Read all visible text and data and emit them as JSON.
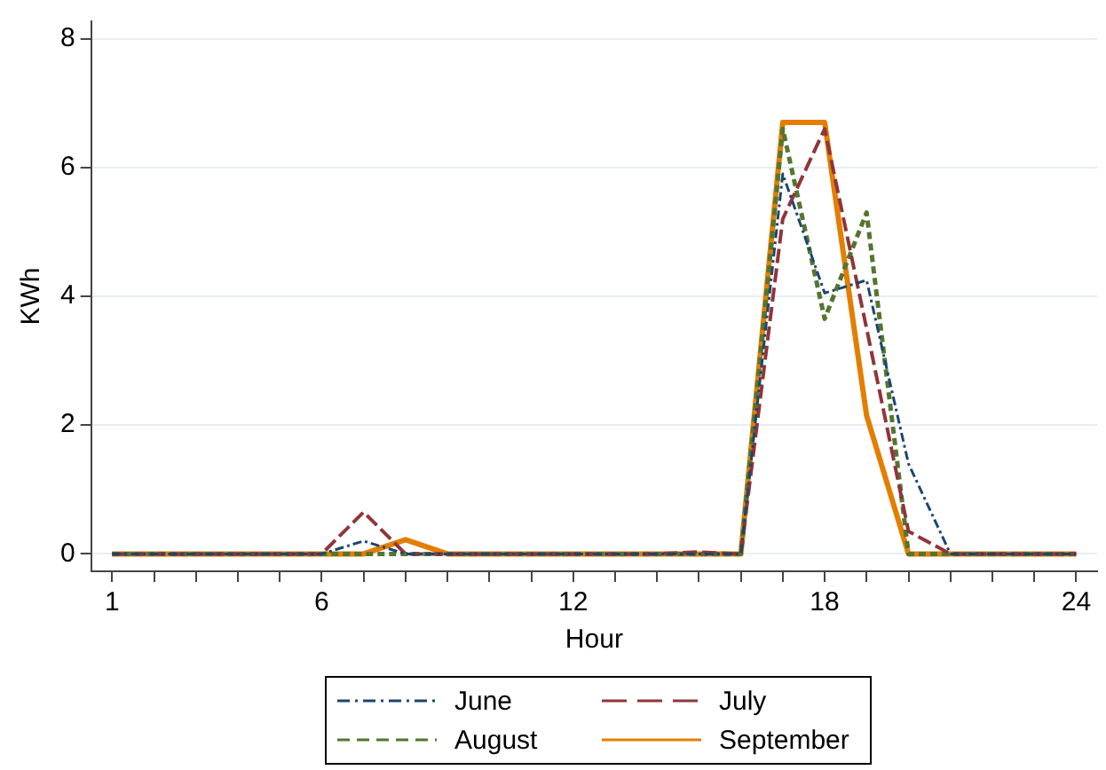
{
  "chart_data": {
    "type": "line",
    "xlabel": "Hour",
    "ylabel": "KWh",
    "x": [
      1,
      2,
      3,
      4,
      5,
      6,
      7,
      8,
      9,
      10,
      11,
      12,
      13,
      14,
      15,
      16,
      17,
      18,
      19,
      20,
      21,
      22,
      23,
      24
    ],
    "series": [
      {
        "name": "June",
        "color": "#1a476f",
        "line_style": "dashdot",
        "values": [
          0,
          0,
          0,
          0,
          0,
          0,
          0.2,
          0,
          0,
          0,
          0,
          0,
          0,
          0,
          0,
          0,
          5.9,
          4.05,
          4.25,
          1.4,
          0,
          0,
          0,
          0
        ]
      },
      {
        "name": "July",
        "color": "#90353b",
        "line_style": "longdash",
        "values": [
          0,
          0,
          0,
          0,
          0,
          0,
          0.65,
          0,
          0,
          0,
          0,
          0,
          0,
          0,
          0.03,
          0,
          5.2,
          6.6,
          3.5,
          0.35,
          0,
          0,
          0,
          0
        ]
      },
      {
        "name": "August",
        "color": "#55752f",
        "line_style": "dashed",
        "values": [
          0,
          0,
          0,
          0,
          0,
          0,
          0,
          0,
          0,
          0,
          0,
          0,
          0,
          0,
          0,
          0,
          6.6,
          3.65,
          5.3,
          0,
          0,
          0,
          0,
          0
        ]
      },
      {
        "name": "September",
        "color": "#e37e00",
        "line_style": "solid",
        "values": [
          0,
          0,
          0,
          0,
          0,
          0,
          0,
          0.22,
          0,
          0,
          0,
          0,
          0,
          0,
          0,
          0,
          6.7,
          6.7,
          2.15,
          0,
          0,
          0,
          0,
          0
        ]
      }
    ],
    "xlim": [
      0.5,
      24.5
    ],
    "xticks": [
      1,
      {
        "value": 2,
        "label": null
      },
      {
        "value": 3,
        "label": null
      },
      {
        "value": 4,
        "label": null
      },
      {
        "value": 5,
        "label": null
      },
      6,
      {
        "value": 7,
        "label": null
      },
      {
        "value": 8,
        "label": null
      },
      {
        "value": 9,
        "label": null
      },
      {
        "value": 10,
        "label": null
      },
      {
        "value": 11,
        "label": null
      },
      12,
      {
        "value": 13,
        "label": null
      },
      {
        "value": 14,
        "label": null
      },
      {
        "value": 15,
        "label": null
      },
      {
        "value": 16,
        "label": null
      },
      {
        "value": 17,
        "label": null
      },
      18,
      {
        "value": 19,
        "label": null
      },
      {
        "value": 20,
        "label": null
      },
      {
        "value": 21,
        "label": null
      },
      {
        "value": 22,
        "label": null
      },
      {
        "value": 23,
        "label": null
      },
      24
    ],
    "ylim": [
      -0.27,
      8.27
    ],
    "yticks": [
      0,
      2,
      4,
      6,
      8
    ],
    "grid": "y",
    "legend": "bottom",
    "marker": "none"
  }
}
